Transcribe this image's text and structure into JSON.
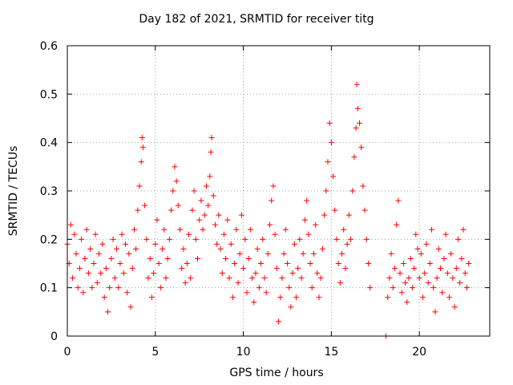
{
  "chart_data": {
    "type": "scatter",
    "title": "Day 182 of 2021, SRMTID for receiver titg",
    "xlabel": "GPS time / hours",
    "ylabel": "SRMTID / TECUs",
    "xlim": [
      0,
      24
    ],
    "ylim": [
      0,
      0.6
    ],
    "xticks": [
      0,
      5,
      10,
      15,
      20
    ],
    "yticks": [
      0,
      0.1,
      0.2,
      0.3,
      0.4,
      0.5,
      0.6
    ],
    "ytick_labels": [
      "0",
      "0.1",
      "0.2",
      "0.3",
      "0.4",
      "0.5",
      "0.6"
    ],
    "grid": true,
    "marker": "+",
    "color": "#ff0000",
    "series": [
      {
        "name": "SRMTID",
        "points": [
          [
            0.0,
            0.19
          ],
          [
            0.1,
            0.15
          ],
          [
            0.2,
            0.23
          ],
          [
            0.3,
            0.12
          ],
          [
            0.4,
            0.21
          ],
          [
            0.5,
            0.17
          ],
          [
            0.6,
            0.1
          ],
          [
            0.7,
            0.14
          ],
          [
            0.8,
            0.2
          ],
          [
            0.9,
            0.09
          ],
          [
            1.0,
            0.16
          ],
          [
            1.1,
            0.22
          ],
          [
            1.2,
            0.13
          ],
          [
            1.3,
            0.18
          ],
          [
            1.4,
            0.1
          ],
          [
            1.5,
            0.15
          ],
          [
            1.6,
            0.21
          ],
          [
            1.7,
            0.11
          ],
          [
            1.8,
            0.17
          ],
          [
            1.9,
            0.13
          ],
          [
            2.0,
            0.19
          ],
          [
            2.1,
            0.08
          ],
          [
            2.2,
            0.14
          ],
          [
            2.3,
            0.05
          ],
          [
            2.4,
            0.1
          ],
          [
            2.5,
            0.16
          ],
          [
            2.6,
            0.2
          ],
          [
            2.7,
            0.12
          ],
          [
            2.8,
            0.18
          ],
          [
            2.9,
            0.1
          ],
          [
            3.0,
            0.15
          ],
          [
            3.1,
            0.21
          ],
          [
            3.2,
            0.13
          ],
          [
            3.3,
            0.19
          ],
          [
            3.4,
            0.09
          ],
          [
            3.5,
            0.17
          ],
          [
            3.6,
            0.06
          ],
          [
            3.7,
            0.14
          ],
          [
            3.8,
            0.22
          ],
          [
            3.9,
            0.18
          ],
          [
            4.0,
            0.26
          ],
          [
            4.1,
            0.31
          ],
          [
            4.2,
            0.36
          ],
          [
            4.25,
            0.41
          ],
          [
            4.3,
            0.39
          ],
          [
            4.4,
            0.27
          ],
          [
            4.5,
            0.2
          ],
          [
            4.6,
            0.12
          ],
          [
            4.7,
            0.16
          ],
          [
            4.8,
            0.08
          ],
          [
            4.9,
            0.13
          ],
          [
            5.0,
            0.19
          ],
          [
            5.1,
            0.24
          ],
          [
            5.2,
            0.15
          ],
          [
            5.3,
            0.1
          ],
          [
            5.4,
            0.18
          ],
          [
            5.5,
            0.22
          ],
          [
            5.6,
            0.12
          ],
          [
            5.7,
            0.16
          ],
          [
            5.8,
            0.2
          ],
          [
            5.9,
            0.26
          ],
          [
            6.0,
            0.3
          ],
          [
            6.1,
            0.35
          ],
          [
            6.2,
            0.32
          ],
          [
            6.3,
            0.27
          ],
          [
            6.4,
            0.22
          ],
          [
            6.5,
            0.14
          ],
          [
            6.6,
            0.18
          ],
          [
            6.7,
            0.11
          ],
          [
            6.8,
            0.15
          ],
          [
            6.9,
            0.21
          ],
          [
            7.0,
            0.12
          ],
          [
            7.1,
            0.26
          ],
          [
            7.2,
            0.3
          ],
          [
            7.3,
            0.2
          ],
          [
            7.4,
            0.16
          ],
          [
            7.5,
            0.24
          ],
          [
            7.6,
            0.28
          ],
          [
            7.7,
            0.22
          ],
          [
            7.8,
            0.25
          ],
          [
            7.9,
            0.31
          ],
          [
            8.0,
            0.27
          ],
          [
            8.1,
            0.33
          ],
          [
            8.15,
            0.38
          ],
          [
            8.2,
            0.41
          ],
          [
            8.3,
            0.29
          ],
          [
            8.4,
            0.23
          ],
          [
            8.5,
            0.19
          ],
          [
            8.6,
            0.25
          ],
          [
            8.7,
            0.18
          ],
          [
            8.8,
            0.13
          ],
          [
            8.9,
            0.21
          ],
          [
            9.0,
            0.16
          ],
          [
            9.1,
            0.24
          ],
          [
            9.2,
            0.12
          ],
          [
            9.3,
            0.19
          ],
          [
            9.4,
            0.08
          ],
          [
            9.5,
            0.15
          ],
          [
            9.6,
            0.22
          ],
          [
            9.7,
            0.11
          ],
          [
            9.8,
            0.17
          ],
          [
            9.9,
            0.25
          ],
          [
            10.0,
            0.14
          ],
          [
            10.1,
            0.2
          ],
          [
            10.2,
            0.09
          ],
          [
            10.3,
            0.16
          ],
          [
            10.4,
            0.22
          ],
          [
            10.5,
            0.12
          ],
          [
            10.6,
            0.07
          ],
          [
            10.7,
            0.13
          ],
          [
            10.8,
            0.18
          ],
          [
            10.9,
            0.1
          ],
          [
            11.0,
            0.15
          ],
          [
            11.1,
            0.2
          ],
          [
            11.2,
            0.12
          ],
          [
            11.3,
            0.09
          ],
          [
            11.4,
            0.17
          ],
          [
            11.5,
            0.23
          ],
          [
            11.6,
            0.28
          ],
          [
            11.7,
            0.31
          ],
          [
            11.8,
            0.21
          ],
          [
            11.9,
            0.14
          ],
          [
            12.0,
            0.03
          ],
          [
            12.1,
            0.08
          ],
          [
            12.2,
            0.12
          ],
          [
            12.3,
            0.17
          ],
          [
            12.4,
            0.22
          ],
          [
            12.5,
            0.15
          ],
          [
            12.6,
            0.1
          ],
          [
            12.7,
            0.06
          ],
          [
            12.8,
            0.13
          ],
          [
            12.9,
            0.19
          ],
          [
            13.0,
            0.08
          ],
          [
            13.1,
            0.14
          ],
          [
            13.2,
            0.2
          ],
          [
            13.3,
            0.12
          ],
          [
            13.4,
            0.17
          ],
          [
            13.5,
            0.24
          ],
          [
            13.6,
            0.28
          ],
          [
            13.7,
            0.21
          ],
          [
            13.8,
            0.15
          ],
          [
            13.9,
            0.1
          ],
          [
            14.0,
            0.17
          ],
          [
            14.1,
            0.23
          ],
          [
            14.2,
            0.13
          ],
          [
            14.3,
            0.08
          ],
          [
            14.4,
            0.12
          ],
          [
            14.5,
            0.18
          ],
          [
            14.6,
            0.25
          ],
          [
            14.7,
            0.3
          ],
          [
            14.8,
            0.36
          ],
          [
            14.9,
            0.44
          ],
          [
            15.0,
            0.4
          ],
          [
            15.1,
            0.33
          ],
          [
            15.2,
            0.26
          ],
          [
            15.3,
            0.2
          ],
          [
            15.4,
            0.15
          ],
          [
            15.5,
            0.11
          ],
          [
            15.6,
            0.17
          ],
          [
            15.7,
            0.22
          ],
          [
            15.8,
            0.14
          ],
          [
            15.9,
            0.19
          ],
          [
            16.0,
            0.25
          ],
          [
            16.1,
            0.2
          ],
          [
            16.2,
            0.3
          ],
          [
            16.3,
            0.37
          ],
          [
            16.4,
            0.43
          ],
          [
            16.45,
            0.52
          ],
          [
            16.5,
            0.47
          ],
          [
            16.6,
            0.44
          ],
          [
            16.7,
            0.39
          ],
          [
            16.8,
            0.31
          ],
          [
            16.9,
            0.26
          ],
          [
            17.0,
            0.2
          ],
          [
            17.1,
            0.15
          ],
          [
            17.2,
            0.1
          ],
          [
            18.1,
            0.0
          ],
          [
            18.2,
            0.08
          ],
          [
            18.3,
            0.12
          ],
          [
            18.4,
            0.17
          ],
          [
            18.5,
            0.1
          ],
          [
            18.6,
            0.14
          ],
          [
            18.7,
            0.23
          ],
          [
            18.8,
            0.28
          ],
          [
            18.9,
            0.13
          ],
          [
            19.0,
            0.09
          ],
          [
            19.1,
            0.15
          ],
          [
            19.2,
            0.11
          ],
          [
            19.3,
            0.07
          ],
          [
            19.4,
            0.12
          ],
          [
            19.5,
            0.16
          ],
          [
            19.6,
            0.1
          ],
          [
            19.7,
            0.14
          ],
          [
            19.8,
            0.21
          ],
          [
            19.9,
            0.18
          ],
          [
            20.0,
            0.12
          ],
          [
            20.1,
            0.17
          ],
          [
            20.2,
            0.08
          ],
          [
            20.3,
            0.13
          ],
          [
            20.4,
            0.19
          ],
          [
            20.5,
            0.11
          ],
          [
            20.6,
            0.15
          ],
          [
            20.7,
            0.22
          ],
          [
            20.8,
            0.1
          ],
          [
            20.9,
            0.05
          ],
          [
            21.0,
            0.12
          ],
          [
            21.1,
            0.18
          ],
          [
            21.2,
            0.14
          ],
          [
            21.3,
            0.09
          ],
          [
            21.4,
            0.16
          ],
          [
            21.5,
            0.21
          ],
          [
            21.6,
            0.13
          ],
          [
            21.7,
            0.08
          ],
          [
            21.8,
            0.17
          ],
          [
            21.9,
            0.12
          ],
          [
            22.0,
            0.06
          ],
          [
            22.1,
            0.14
          ],
          [
            22.2,
            0.2
          ],
          [
            22.3,
            0.11
          ],
          [
            22.4,
            0.16
          ],
          [
            22.5,
            0.22
          ],
          [
            22.6,
            0.13
          ],
          [
            22.7,
            0.1
          ],
          [
            22.8,
            0.15
          ]
        ]
      }
    ]
  }
}
